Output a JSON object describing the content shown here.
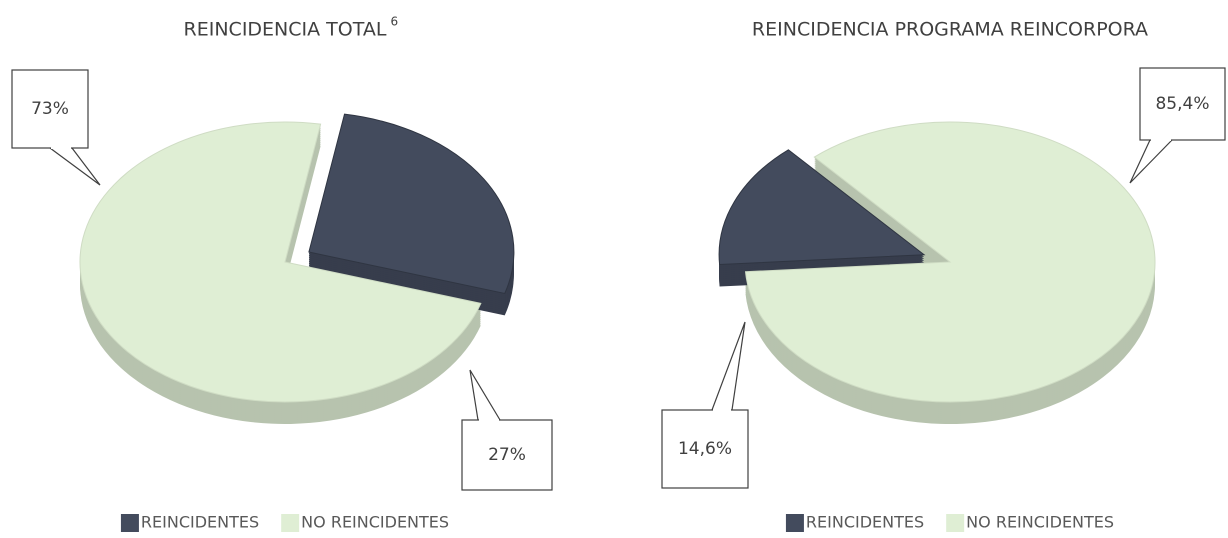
{
  "chart_data": [
    {
      "type": "pie",
      "title": "REINCIDENCIA TOTAL",
      "title_note": "6",
      "categories": [
        "REINCIDENTES",
        "NO REINCIDENTES"
      ],
      "values": [
        27,
        73
      ],
      "value_labels": [
        "27%",
        "73%"
      ],
      "colors": [
        "#434b5d",
        "#dfeed4"
      ],
      "legend": "bottom"
    },
    {
      "type": "pie",
      "title": "REINCIDENCIA PROGRAMA REINCORPORA",
      "categories": [
        "REINCIDENTES",
        "NO REINCIDENTES"
      ],
      "values": [
        14.6,
        85.4
      ],
      "value_labels": [
        "14,6%",
        "85,4%"
      ],
      "colors": [
        "#434b5d",
        "#dfeed4"
      ],
      "legend": "bottom"
    }
  ]
}
